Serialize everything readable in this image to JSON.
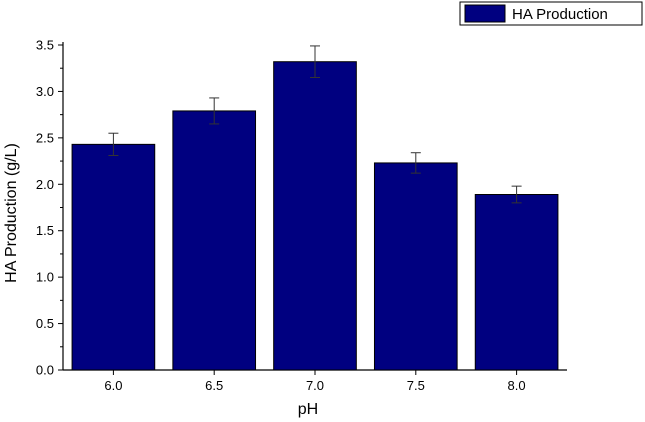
{
  "chart_data": {
    "type": "bar",
    "categories": [
      "6.0",
      "6.5",
      "7.0",
      "7.5",
      "8.0"
    ],
    "series": [
      {
        "name": "HA Production",
        "values": [
          2.43,
          2.79,
          3.32,
          2.23,
          1.89
        ],
        "errors": [
          0.12,
          0.14,
          0.17,
          0.11,
          0.09
        ],
        "color": "#000080"
      }
    ],
    "title": "",
    "xlabel": "pH",
    "ylabel": "HA Production (g/L)",
    "ylim": [
      0,
      3.5
    ],
    "yticks": [
      "0.0",
      "0.5",
      "1.0",
      "1.5",
      "2.0",
      "2.5",
      "3.0",
      "3.5"
    ],
    "grid": false,
    "legend_position": "top-right"
  }
}
